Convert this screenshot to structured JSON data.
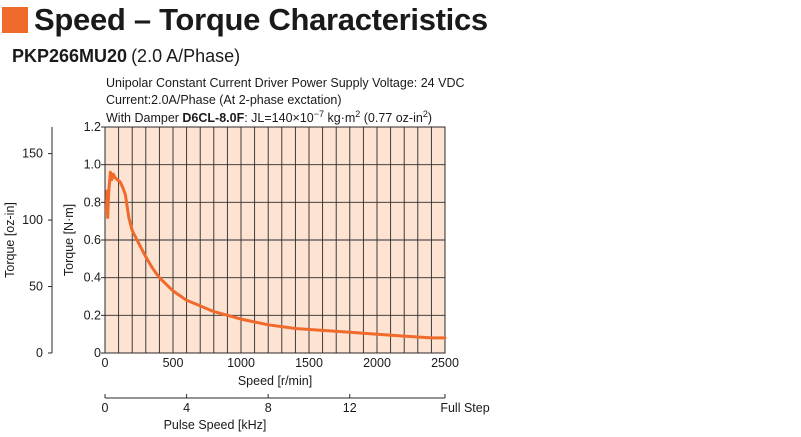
{
  "header": {
    "title": "Speed – Torque Characteristics",
    "model": "PKP266MU20",
    "model_note": "(2.0 A/Phase)"
  },
  "conditions": {
    "line1": "Unipolar Constant Current Driver  Power Supply Voltage: 24 VDC",
    "line2": "Current:2.0A/Phase (At 2-phase exctation)",
    "line3_prefix": "With Damper ",
    "line3_damper": "D6CL-8.0F",
    "line3_jl": ": JL=140×10",
    "line3_exp": "−7",
    "line3_unit": " kg·m",
    "line3_exp2": "2",
    "line3_oz": " (0.77 oz-in",
    "line3_exp3": "2",
    "line3_close": ")"
  },
  "colors": {
    "accent": "#ef6a2b",
    "plot_fill": "#fde3d2",
    "curve": "#ef6a2b",
    "grid": "#2a2a2a"
  },
  "chart_data": {
    "type": "line",
    "xlabel": "Speed [r/min]",
    "ylabel": "Torque [N·m]",
    "ylabel2": "Torque [oz-in]",
    "x2label": "Pulse Speed [kHz]",
    "x2_end_label": "Full Step",
    "xlim": [
      0,
      2500
    ],
    "ylim": [
      0,
      1.2
    ],
    "y2lim": [
      0,
      170
    ],
    "x2lim": [
      0,
      16.67
    ],
    "x_ticks": [
      0,
      500,
      1000,
      1500,
      2000,
      2500
    ],
    "x_tick_labels": [
      "0",
      "500",
      "1000",
      "1500",
      "2000",
      "2500"
    ],
    "y_ticks": [
      0,
      0.2,
      0.4,
      0.6,
      0.8,
      1.0,
      1.2
    ],
    "y_tick_labels": [
      "0",
      "0.2",
      "0.4",
      "0.6",
      "0.8",
      "1.0",
      "1.2"
    ],
    "y2_ticks": [
      0,
      50,
      100,
      150
    ],
    "y2_tick_labels": [
      "0",
      "50",
      "100",
      "150"
    ],
    "x2_ticks": [
      0,
      4,
      8,
      12
    ],
    "x2_tick_labels": [
      "0",
      "4",
      "8",
      "12"
    ],
    "grid": true,
    "grid_x_step": 100,
    "grid_y_step": 0.2,
    "series": [
      {
        "x": [
          10,
          15,
          20,
          25,
          30,
          40,
          50,
          60,
          75,
          90,
          110,
          130,
          150,
          175,
          200,
          250,
          300,
          350,
          400,
          500,
          600,
          700,
          800,
          1000,
          1200,
          1400,
          1600,
          1800,
          2000,
          2200,
          2400,
          2500
        ],
        "y": [
          0.75,
          0.86,
          0.72,
          0.82,
          0.88,
          0.96,
          0.92,
          0.95,
          0.93,
          0.92,
          0.91,
          0.88,
          0.84,
          0.72,
          0.65,
          0.58,
          0.51,
          0.45,
          0.4,
          0.33,
          0.28,
          0.25,
          0.22,
          0.18,
          0.15,
          0.13,
          0.12,
          0.11,
          0.1,
          0.09,
          0.08,
          0.08
        ]
      }
    ]
  }
}
